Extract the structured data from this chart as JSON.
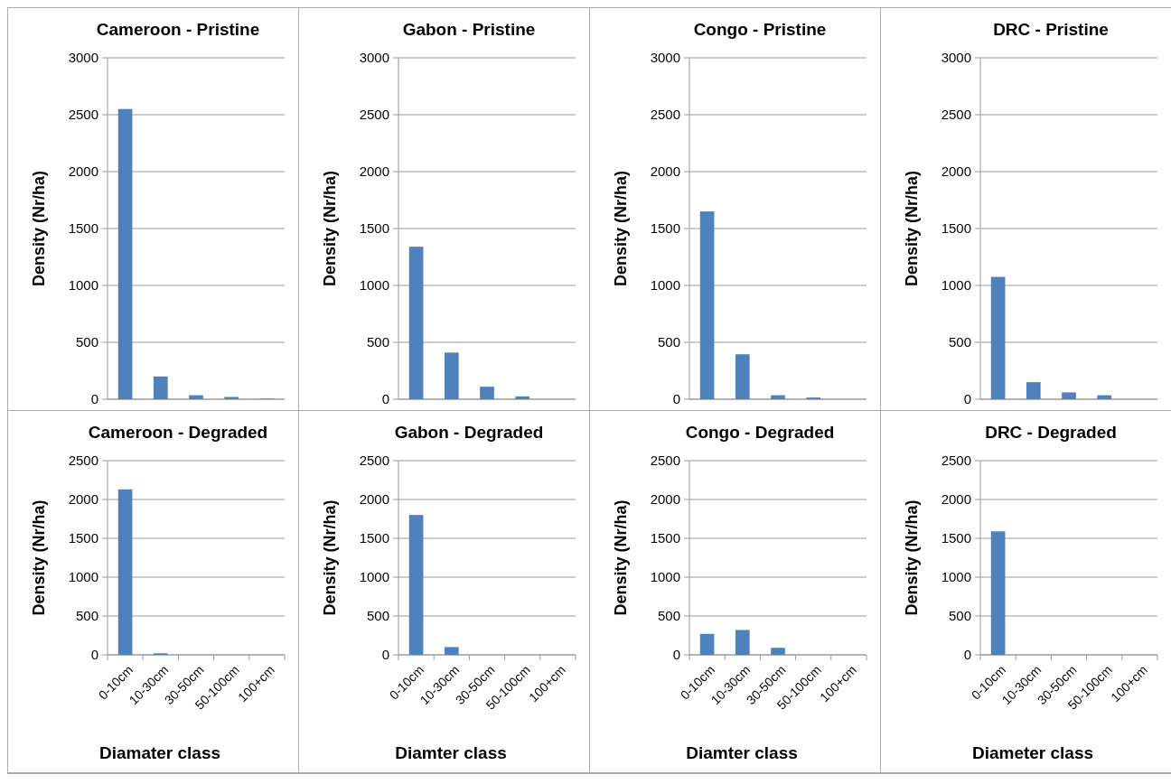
{
  "chart_data": [
    {
      "type": "bar",
      "title": "Cameroon - Pristine",
      "ylabel": "Density (Nr/ha)",
      "categories": [
        null,
        null,
        null,
        null,
        null
      ],
      "values": [
        2550,
        200,
        35,
        20,
        5
      ],
      "color": "#4f81bd",
      "ylim": [
        0,
        3000
      ],
      "yticks": [
        0,
        500,
        1000,
        1500,
        2000,
        2500,
        3000
      ],
      "grid": "y",
      "tick_labels": "y"
    },
    {
      "type": "bar",
      "title": "Gabon - Pristine",
      "ylabel": "Density (Nr/ha)",
      "categories": [
        null,
        null,
        null,
        null,
        null
      ],
      "values": [
        1340,
        410,
        110,
        25,
        0
      ],
      "color": "#4f81bd",
      "ylim": [
        0,
        3000
      ],
      "yticks": [
        0,
        500,
        1000,
        1500,
        2000,
        2500,
        3000
      ],
      "grid": "y",
      "tick_labels": "y"
    },
    {
      "type": "bar",
      "title": "Congo - Pristine",
      "ylabel": "Density (Nr/ha)",
      "categories": [
        null,
        null,
        null,
        null,
        null
      ],
      "values": [
        1650,
        395,
        35,
        15,
        0
      ],
      "color": "#4f81bd",
      "ylim": [
        0,
        3000
      ],
      "yticks": [
        0,
        500,
        1000,
        1500,
        2000,
        2500,
        3000
      ],
      "grid": "y",
      "tick_labels": "y"
    },
    {
      "type": "bar",
      "title": "DRC - Pristine",
      "ylabel": "Density (Nr/ha)",
      "categories": [
        null,
        null,
        null,
        null,
        null
      ],
      "values": [
        1075,
        150,
        60,
        35,
        0
      ],
      "color": "#4f81bd",
      "ylim": [
        0,
        3000
      ],
      "yticks": [
        0,
        500,
        1000,
        1500,
        2000,
        2500,
        3000
      ],
      "grid": "y",
      "tick_labels": "y"
    },
    {
      "type": "bar",
      "title": "Cameroon - Degraded",
      "xlabel": "Diamater class",
      "ylabel": "Density (Nr/ha)",
      "categories": [
        "0-10cm",
        "10-30cm",
        "30-50cm",
        "50-100cm",
        "100+cm"
      ],
      "values": [
        2130,
        20,
        0,
        0,
        0
      ],
      "color": "#4f81bd",
      "ylim": [
        0,
        2500
      ],
      "yticks": [
        0,
        500,
        1000,
        1500,
        2000,
        2500
      ],
      "grid": "y"
    },
    {
      "type": "bar",
      "title": "Gabon - Degraded",
      "xlabel": "Diamter class",
      "ylabel": "Density (Nr/ha)",
      "categories": [
        "0-10cm",
        "10-30cm",
        "30-50cm",
        "50-100cm",
        "100+cm"
      ],
      "values": [
        1800,
        100,
        0,
        0,
        0
      ],
      "color": "#4f81bd",
      "ylim": [
        0,
        2500
      ],
      "yticks": [
        0,
        500,
        1000,
        1500,
        2000,
        2500
      ],
      "grid": "y"
    },
    {
      "type": "bar",
      "title": "Congo - Degraded",
      "xlabel": "Diamter class",
      "ylabel": "Density (Nr/ha)",
      "categories": [
        "0-10cm",
        "10-30cm",
        "30-50cm",
        "50-100cm",
        "100+cm"
      ],
      "values": [
        270,
        320,
        90,
        0,
        0
      ],
      "color": "#4f81bd",
      "ylim": [
        0,
        2500
      ],
      "yticks": [
        0,
        500,
        1000,
        1500,
        2000,
        2500
      ],
      "grid": "y"
    },
    {
      "type": "bar",
      "title": "DRC - Degraded",
      "xlabel": "Diameter class",
      "ylabel": "Density (Nr/ha)",
      "categories": [
        "0-10cm",
        "10-30cm",
        "30-50cm",
        "50-100cm",
        "100+cm"
      ],
      "values": [
        1590,
        0,
        0,
        0,
        0
      ],
      "color": "#4f81bd",
      "ylim": [
        0,
        2500
      ],
      "yticks": [
        0,
        500,
        1000,
        1500,
        2000,
        2500
      ],
      "grid": "y"
    }
  ]
}
